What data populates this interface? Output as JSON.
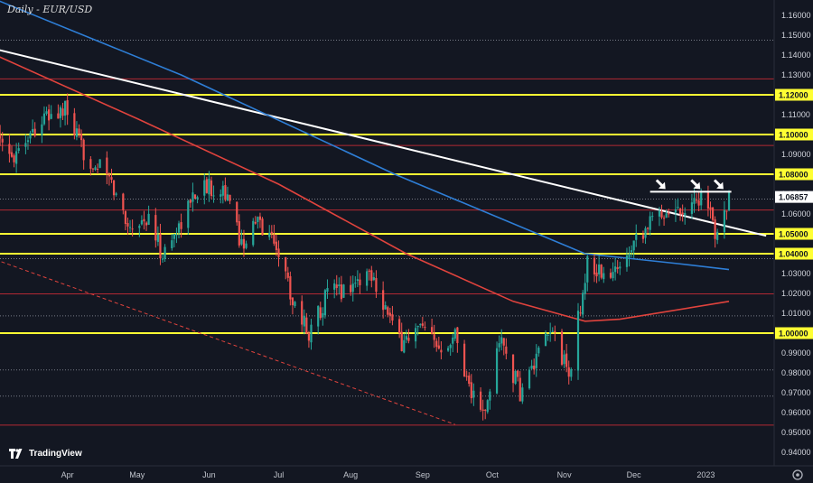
{
  "chart_data": {
    "type": "candlestick",
    "title": "Daily - EUR/USD",
    "ylim": [
      0.94,
      1.165
    ],
    "y_ticks": [
      "1.16000",
      "1.15000",
      "1.14000",
      "1.13000",
      "1.12000",
      "1.11000",
      "1.10000",
      "1.09000",
      "1.08000",
      "1.07000",
      "1.06000",
      "1.05000",
      "1.04000",
      "1.03000",
      "1.02000",
      "1.01000",
      "1.00000",
      "0.99000",
      "0.98000",
      "0.97000",
      "0.96000",
      "0.95000",
      "0.94000"
    ],
    "highlighted_levels": [
      1.12,
      1.1,
      1.08,
      1.05,
      1.04,
      1.0
    ],
    "highlight_labels": [
      "1.12000",
      "1.10000",
      "1.08000",
      "1.05000",
      "1.04000",
      "1.00000"
    ],
    "red_levels": [
      1.128,
      1.0945,
      1.062,
      1.0198,
      0.9537
    ],
    "dotted_levels": [
      1.1475,
      1.0675,
      1.0375,
      1.0087,
      0.9815,
      0.9683
    ],
    "current_price": 1.06857,
    "current_price_label": "1.06857",
    "x_labels": [
      "Apr",
      "May",
      "Jun",
      "Jul",
      "Aug",
      "Sep",
      "Oct",
      "Nov",
      "Dec",
      "2023"
    ],
    "price_path": [
      [
        "2022-03-01",
        1.098
      ],
      [
        "2022-03-07",
        1.088
      ],
      [
        "2022-03-15",
        1.1
      ],
      [
        "2022-03-22",
        1.108
      ],
      [
        "2022-03-31",
        1.112
      ],
      [
        "2022-04-08",
        1.09
      ],
      [
        "2022-04-18",
        1.08
      ],
      [
        "2022-04-27",
        1.055
      ],
      [
        "2022-05-06",
        1.057
      ],
      [
        "2022-05-12",
        1.039
      ],
      [
        "2022-05-18",
        1.052
      ],
      [
        "2022-05-27",
        1.073
      ],
      [
        "2022-06-07",
        1.074
      ],
      [
        "2022-06-15",
        1.045
      ],
      [
        "2022-06-22",
        1.056
      ],
      [
        "2022-06-30",
        1.045
      ],
      [
        "2022-07-07",
        1.017
      ],
      [
        "2022-07-14",
        1.0
      ],
      [
        "2022-07-22",
        1.02
      ],
      [
        "2022-07-29",
        1.022
      ],
      [
        "2022-08-10",
        1.031
      ],
      [
        "2022-08-22",
        0.995
      ],
      [
        "2022-08-31",
        1.002
      ],
      [
        "2022-09-07",
        0.993
      ],
      [
        "2022-09-15",
        1.0
      ],
      [
        "2022-09-22",
        0.97
      ],
      [
        "2022-09-28",
        0.958
      ],
      [
        "2022-10-04",
        0.998
      ],
      [
        "2022-10-13",
        0.97
      ],
      [
        "2022-10-27",
        1.002
      ],
      [
        "2022-11-03",
        0.978
      ],
      [
        "2022-11-11",
        1.035
      ],
      [
        "2022-11-21",
        1.027
      ],
      [
        "2022-12-01",
        1.048
      ],
      [
        "2022-12-14",
        1.062
      ],
      [
        "2022-12-22",
        1.063
      ],
      [
        "2022-12-30",
        1.069
      ],
      [
        "2023-01-05",
        1.052
      ],
      [
        "2023-01-11",
        1.0686
      ]
    ],
    "moving_averages": [
      {
        "color": "#2e7ed6",
        "points": [
          [
            "2022-03-01",
            1.168
          ],
          [
            "2022-05-20",
            1.13
          ],
          [
            "2022-08-20",
            1.08
          ],
          [
            "2022-11-10",
            1.04
          ],
          [
            "2022-12-20",
            1.035
          ],
          [
            "2023-01-11",
            1.032
          ]
        ]
      },
      {
        "color": "#e0433d",
        "points": [
          [
            "2022-03-01",
            1.14
          ],
          [
            "2022-05-01",
            1.108
          ],
          [
            "2022-07-01",
            1.075
          ],
          [
            "2022-08-25",
            1.04
          ],
          [
            "2022-10-10",
            1.016
          ],
          [
            "2022-11-10",
            1.006
          ],
          [
            "2022-11-25",
            1.007
          ],
          [
            "2023-01-11",
            1.016
          ]
        ]
      }
    ],
    "trendlines": [
      {
        "color": "#ffffff",
        "style": "solid",
        "from": [
          "2022-03-01",
          1.143
        ],
        "to": [
          "2023-01-27",
          1.049
        ]
      },
      {
        "color": "#e0433d",
        "style": "dashed",
        "from": [
          "2022-03-01",
          1.037
        ],
        "to": [
          "2022-09-15",
          0.954
        ]
      }
    ],
    "resistance_segment": {
      "color": "#ffffff",
      "from": [
        "2022-12-08",
        1.0712
      ],
      "to": [
        "2023-01-12",
        1.0712
      ]
    },
    "arrows": [
      [
        "2022-12-15",
        1.073
      ],
      [
        "2022-12-30",
        1.073
      ],
      [
        "2023-01-09",
        1.073
      ]
    ],
    "grid": false
  },
  "branding": {
    "logo_text": "TradingView"
  },
  "ui": {
    "gear_icon": "gear-icon",
    "logo_icon": "tradingview-logo-icon"
  }
}
